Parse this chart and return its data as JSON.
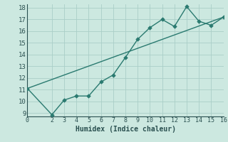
{
  "title": "",
  "xlabel": "Humidex (Indice chaleur)",
  "xlim": [
    0,
    16
  ],
  "ylim": [
    8.7,
    18.3
  ],
  "xticks": [
    0,
    2,
    3,
    4,
    5,
    6,
    7,
    8,
    9,
    10,
    11,
    12,
    13,
    14,
    15,
    16
  ],
  "yticks": [
    9,
    10,
    11,
    12,
    13,
    14,
    15,
    16,
    17,
    18
  ],
  "line_color": "#2a7a70",
  "bg_color": "#cce8e0",
  "grid_color": "#aacec8",
  "spine_color": "#2a5050",
  "line1_x": [
    0,
    2,
    3,
    4,
    5,
    6,
    7,
    8,
    9,
    10,
    11,
    12,
    13,
    14,
    15,
    16
  ],
  "line1_y": [
    11.1,
    8.85,
    10.1,
    10.45,
    10.45,
    11.65,
    12.25,
    13.75,
    15.3,
    16.3,
    17.0,
    16.4,
    18.1,
    16.85,
    16.5,
    17.2
  ],
  "line2_x": [
    0,
    16
  ],
  "line2_y": [
    11.1,
    17.2
  ],
  "marker_size": 2.8,
  "line_width": 1.0
}
